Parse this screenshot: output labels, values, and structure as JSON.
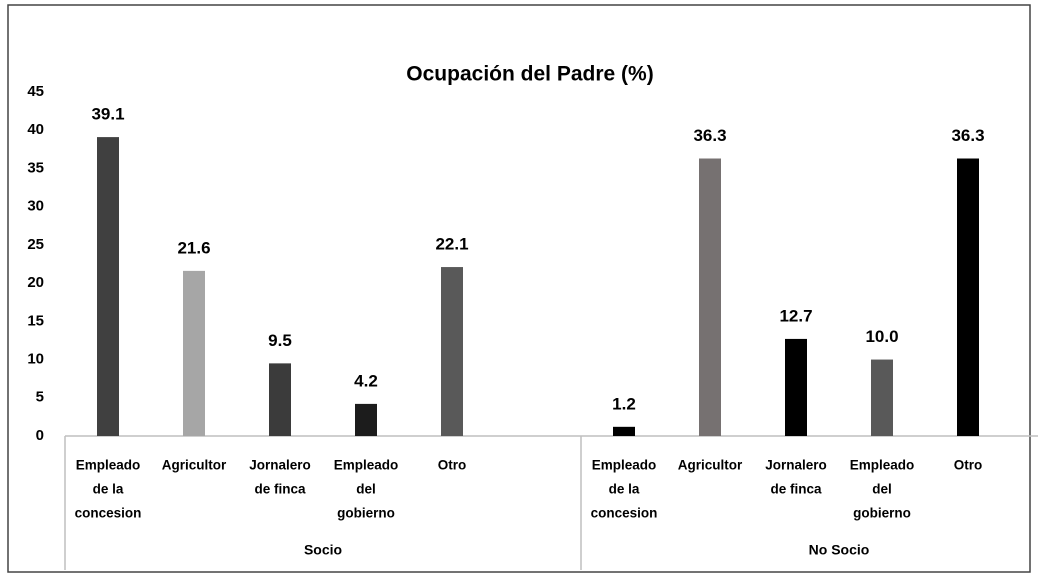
{
  "chart_data": {
    "type": "bar",
    "title": "Ocupación del Padre (%)",
    "ylim": [
      0,
      45
    ],
    "yticks": [
      0,
      5,
      10,
      15,
      20,
      25,
      30,
      35,
      40,
      45
    ],
    "groups": [
      {
        "label": "Socio",
        "categories": [
          [
            "Empleado",
            "de la",
            "concesion"
          ],
          [
            "Agricultor"
          ],
          [
            "Jornalero",
            "de finca"
          ],
          [
            "Empleado",
            "del",
            "gobierno"
          ],
          [
            "Otro"
          ]
        ],
        "values": [
          39.1,
          21.6,
          9.5,
          4.2,
          22.1
        ],
        "value_labels": [
          "39.1",
          "21.6",
          "9.5",
          "4.2",
          "22.1"
        ],
        "colors": [
          "#404040",
          "#a6a6a6",
          "#3b3b3b",
          "#1c1c1c",
          "#595959"
        ]
      },
      {
        "label": "No Socio",
        "categories": [
          [
            "Empleado",
            "de la",
            "concesion"
          ],
          [
            "Agricultor"
          ],
          [
            "Jornalero",
            "de finca"
          ],
          [
            "Empleado",
            "del",
            "gobierno"
          ],
          [
            "Otro"
          ]
        ],
        "values": [
          1.2,
          36.3,
          12.7,
          10.0,
          36.3
        ],
        "value_labels": [
          "1.2",
          "36.3",
          "12.7",
          "10.0",
          "36.3"
        ],
        "colors": [
          "#000000",
          "#767171",
          "#000000",
          "#595959",
          "#000000"
        ]
      }
    ]
  }
}
